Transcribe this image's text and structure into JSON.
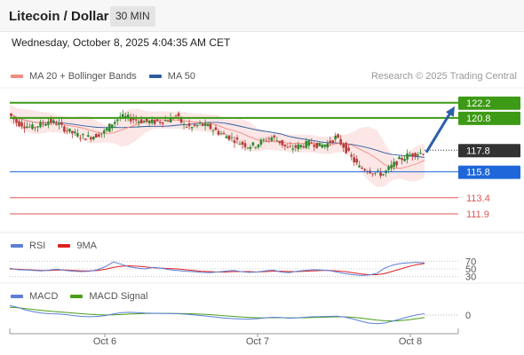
{
  "header": {
    "title": "Litecoin / Dollar",
    "timeframe": "30 MIN"
  },
  "datetime": "Wednesday, October 8, 2025 4:04:35 AM CET",
  "legend": {
    "ma20_label": "MA 20 + Bollinger Bands",
    "ma50_label": "MA 50",
    "ma20_color": "#f28b82",
    "ma50_color": "#2e5d9f",
    "rsi_label": "RSI",
    "rsi9ma_label": "9MA",
    "rsi_color": "#5b7fd6",
    "rsi9ma_color": "#e02020",
    "macd_label": "MACD",
    "macd_signal_label": "MACD Signal",
    "macd_color": "#5b7fd6",
    "macd_signal_color": "#4a9e1a"
  },
  "copyright": "Research © 2025 Trading Central",
  "chart_data": {
    "type": "candlestick",
    "price_ylim": [
      110.5,
      123.5
    ],
    "levels": [
      {
        "value": 122.2,
        "label": "122.2",
        "style": "resistance",
        "color": "#3d9a16"
      },
      {
        "value": 120.8,
        "label": "120.8",
        "style": "resistance",
        "color": "#3d9a16"
      },
      {
        "value": 117.8,
        "label": "117.8",
        "style": "current",
        "color": "#333333"
      },
      {
        "value": 115.8,
        "label": "115.8",
        "style": "support",
        "color": "#1e66d9"
      },
      {
        "value": 113.4,
        "label": "113.4",
        "style": "minor",
        "color": "#e05555"
      },
      {
        "value": 111.9,
        "label": "111.9",
        "style": "minor",
        "color": "#e05555"
      }
    ],
    "x_ticks": [
      "Oct 6",
      "Oct 7",
      "Oct 8"
    ],
    "price_path": [
      121.2,
      120.4,
      120.1,
      119.9,
      120.2,
      120.5,
      120.3,
      119.8,
      119.4,
      119.1,
      119.0,
      119.2,
      119.5,
      120.3,
      120.9,
      120.8,
      120.6,
      120.5,
      120.4,
      120.5,
      120.6,
      121.0,
      120.1,
      119.9,
      120.2,
      120.0,
      119.6,
      119.2,
      118.9,
      118.5,
      118.2,
      118.3,
      118.7,
      119.0,
      118.6,
      117.9,
      118.1,
      118.3,
      118.5,
      118.2,
      118.4,
      119.0,
      118.2,
      117.1,
      116.2,
      116.0,
      115.7,
      115.6,
      116.3,
      116.9,
      117.3,
      117.5,
      117.6
    ],
    "projection": {
      "from": 117.6,
      "to": 122.2
    },
    "rsi": {
      "levels": [
        70,
        50,
        30
      ],
      "ylim": [
        20,
        80
      ],
      "rsi_values": [
        52,
        48,
        47,
        46,
        45,
        47,
        49,
        46,
        44,
        43,
        44,
        48,
        56,
        68,
        62,
        55,
        52,
        50,
        54,
        52,
        48,
        46,
        44,
        43,
        41,
        40,
        42,
        44,
        46,
        43,
        41,
        42,
        45,
        47,
        42,
        40,
        44,
        46,
        48,
        47,
        46,
        42,
        38,
        35,
        33,
        34,
        38,
        52,
        60,
        64,
        66,
        67,
        66
      ],
      "ma9_values": [
        50,
        49,
        48,
        47,
        46,
        46,
        47,
        47,
        46,
        45,
        45,
        46,
        49,
        54,
        57,
        58,
        57,
        55,
        53,
        52,
        51,
        50,
        48,
        46,
        44,
        43,
        42,
        42,
        43,
        43,
        43,
        42,
        43,
        44,
        44,
        43,
        43,
        44,
        45,
        46,
        46,
        45,
        43,
        40,
        37,
        35,
        35,
        38,
        44,
        50,
        56,
        61,
        64
      ]
    },
    "macd": {
      "zero_label": "0",
      "ylim": [
        -1.2,
        1.2
      ],
      "macd_values": [
        0.85,
        0.7,
        0.45,
        0.3,
        0.18,
        0.12,
        0.1,
        0.05,
        -0.05,
        -0.12,
        -0.15,
        -0.12,
        -0.05,
        0.1,
        0.22,
        0.25,
        0.22,
        0.18,
        0.16,
        0.15,
        0.14,
        0.12,
        0.08,
        0.02,
        -0.05,
        -0.12,
        -0.2,
        -0.28,
        -0.32,
        -0.35,
        -0.36,
        -0.33,
        -0.25,
        -0.2,
        -0.22,
        -0.28,
        -0.25,
        -0.2,
        -0.15,
        -0.14,
        -0.12,
        -0.1,
        -0.18,
        -0.35,
        -0.55,
        -0.72,
        -0.78,
        -0.72,
        -0.55,
        -0.35,
        -0.15,
        0.02,
        0.12
      ],
      "signal_values": [
        0.7,
        0.66,
        0.58,
        0.5,
        0.42,
        0.35,
        0.29,
        0.24,
        0.18,
        0.12,
        0.07,
        0.03,
        0.01,
        0.02,
        0.05,
        0.09,
        0.12,
        0.14,
        0.15,
        0.15,
        0.15,
        0.14,
        0.13,
        0.11,
        0.08,
        0.04,
        -0.01,
        -0.07,
        -0.12,
        -0.17,
        -0.21,
        -0.24,
        -0.25,
        -0.24,
        -0.24,
        -0.25,
        -0.25,
        -0.24,
        -0.22,
        -0.2,
        -0.18,
        -0.16,
        -0.16,
        -0.2,
        -0.27,
        -0.36,
        -0.45,
        -0.51,
        -0.53,
        -0.5,
        -0.43,
        -0.33,
        -0.22
      ]
    }
  }
}
